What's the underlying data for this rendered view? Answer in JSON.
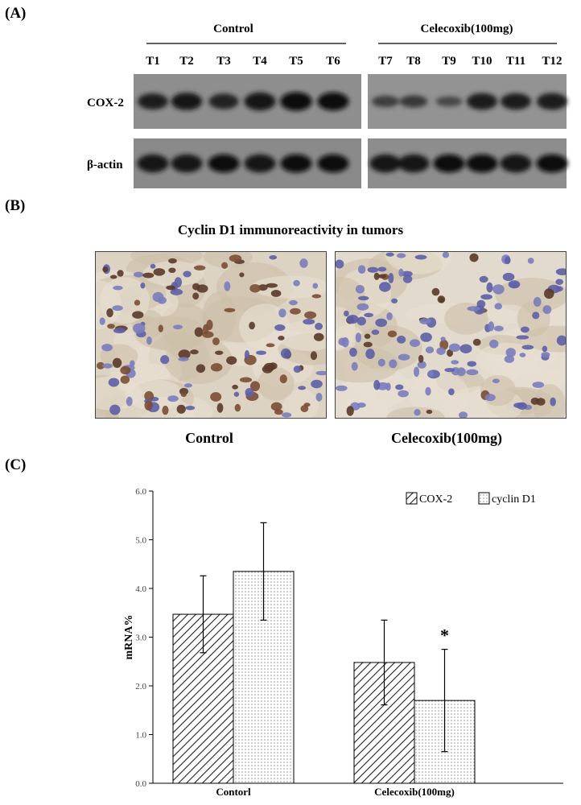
{
  "panel_a": {
    "label": "(A)",
    "groups": [
      {
        "title": "Control",
        "lanes": [
          "T1",
          "T2",
          "T3",
          "T4",
          "T5",
          "T6"
        ]
      },
      {
        "title": "Celecoxib(100mg)",
        "lanes": [
          "T7",
          "T8",
          "T9",
          "T10",
          "T11",
          "T12"
        ]
      }
    ],
    "rows": [
      {
        "label": "COX-2",
        "intensity": [
          0.75,
          0.85,
          0.7,
          0.9,
          0.95,
          0.92,
          0.4,
          0.45,
          0.3,
          0.8,
          0.78,
          0.8
        ]
      },
      {
        "label": "β-actin",
        "intensity": [
          0.9,
          0.9,
          0.92,
          0.9,
          0.92,
          0.92,
          0.9,
          0.9,
          0.92,
          0.92,
          0.9,
          0.92
        ]
      }
    ]
  },
  "panel_b": {
    "label": "(B)",
    "title": "Cyclin D1 immunoreactivity in tumors",
    "captions": [
      "Control",
      "Celecoxib(100mg)"
    ]
  },
  "panel_c": {
    "label": "(C)"
  },
  "chart_data": {
    "type": "bar",
    "categories": [
      "Contorl",
      "Celecoxib(100mg)"
    ],
    "series": [
      {
        "name": "COX-2",
        "values": [
          3.47,
          2.48
        ],
        "error": [
          0.79,
          0.87
        ],
        "pattern": "hatch"
      },
      {
        "name": "cyclin D1",
        "values": [
          4.35,
          1.7
        ],
        "error": [
          1.0,
          1.05
        ],
        "pattern": "dots"
      }
    ],
    "ylabel": "mRNA%",
    "ylim": [
      0,
      6
    ],
    "yticks": [
      "0.0",
      "1.0",
      "2.0",
      "3.0",
      "4.0",
      "5.0",
      "6.0"
    ],
    "annotations": [
      {
        "text": "*",
        "category": 1,
        "series": 1
      }
    ],
    "legend": "top-right",
    "grid": false
  }
}
